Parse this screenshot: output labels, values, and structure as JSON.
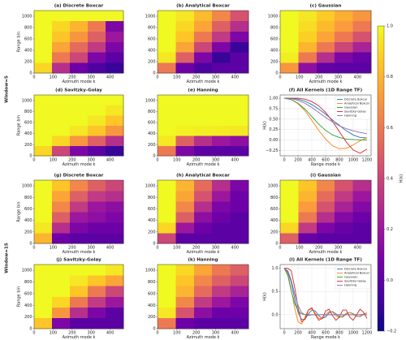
{
  "row_labels": [
    "Window=5",
    "Window=15"
  ],
  "colorbar": {
    "label": "H(k)",
    "lim": [
      -0.2,
      1.0
    ],
    "ticks": [
      {
        "value": -0.2,
        "label": "−0.2"
      },
      {
        "value": 0,
        "label": "0.0"
      },
      {
        "value": 0.2,
        "label": "0.2"
      },
      {
        "value": 0.4,
        "label": "0.4"
      },
      {
        "value": 0.6,
        "label": "0.6"
      },
      {
        "value": 0.8,
        "label": "0.8"
      },
      {
        "value": 1.0,
        "label": "1.0"
      }
    ],
    "colormap": [
      "#0d0887",
      "#46039f",
      "#7201a8",
      "#9c179e",
      "#bd3786",
      "#d8576b",
      "#ed7953",
      "#fb9f3a",
      "#fdca26",
      "#f0f921"
    ]
  },
  "chart_data": [
    {
      "type": "heatmap",
      "title": "(a) Discrete Boxcar",
      "xlabel": "Azimuth mode k",
      "ylabel": "Range bin",
      "xlim": [
        0,
        470
      ],
      "ylim": [
        0,
        1100
      ],
      "xticks": [
        0,
        100,
        200,
        300,
        400
      ],
      "yticks": [
        0,
        200,
        400,
        600,
        800,
        1000
      ],
      "z": [
        [
          0.9,
          0.3,
          0.05,
          -0.05,
          -0.1
        ],
        [
          1,
          0.6,
          0.4,
          0.1,
          0
        ],
        [
          1,
          0.75,
          0.55,
          0.35,
          0.1
        ],
        [
          1,
          0.85,
          0.7,
          0.5,
          0.2
        ],
        [
          1,
          0.9,
          0.8,
          0.6,
          0.1
        ],
        [
          1,
          1,
          1,
          1,
          1
        ]
      ]
    },
    {
      "type": "heatmap",
      "title": "(b) Analytical Boxcar",
      "xlabel": "Azimuth mode k",
      "xlim": [
        0,
        470
      ],
      "ylim": [
        0,
        1100
      ],
      "xticks": [
        0,
        100,
        200,
        300,
        400
      ],
      "yticks": [
        0,
        200,
        400,
        600,
        800,
        1000
      ],
      "z": [
        [
          0.6,
          0.05,
          -0.05,
          0,
          0
        ],
        [
          0.95,
          0.5,
          0.1,
          -0.1,
          0
        ],
        [
          1,
          0.75,
          0.4,
          0.1,
          -0.1
        ],
        [
          1,
          0.85,
          0.6,
          0.35,
          0.1
        ],
        [
          1,
          0.9,
          0.75,
          0.5,
          0.3
        ],
        [
          1,
          0.95,
          0.82,
          0.65,
          0.45
        ]
      ]
    },
    {
      "type": "heatmap",
      "title": "(c) Gaussian",
      "xlabel": "Azimuth mode k",
      "xlim": [
        0,
        470
      ],
      "ylim": [
        0,
        1100
      ],
      "xticks": [
        0,
        100,
        200,
        300,
        400
      ],
      "yticks": [
        0,
        200,
        400,
        600,
        800,
        1000
      ],
      "z": [
        [
          0.7,
          0.15,
          0.02,
          0,
          0
        ],
        [
          0.97,
          0.6,
          0.3,
          0.1,
          0.03
        ],
        [
          1,
          0.8,
          0.6,
          0.4,
          0.25
        ],
        [
          1,
          0.88,
          0.75,
          0.6,
          0.45
        ],
        [
          1,
          0.92,
          0.82,
          0.72,
          0.6
        ],
        [
          1,
          0.95,
          0.87,
          0.78,
          0.7
        ]
      ]
    },
    {
      "type": "heatmap",
      "title": "(d) Savitzky-Golay",
      "xlabel": "Azimuth mode k",
      "ylabel": "Range bin",
      "xlim": [
        0,
        470
      ],
      "ylim": [
        0,
        1100
      ],
      "xticks": [
        0,
        100,
        200,
        300,
        400
      ],
      "yticks": [
        0,
        200,
        400,
        600,
        800,
        1000
      ],
      "z": [
        [
          0.9,
          0.4,
          0.1,
          0,
          -0.1
        ],
        [
          1,
          0.9,
          0.7,
          0.5,
          0.3
        ],
        [
          1,
          1,
          0.95,
          0.85,
          0.7
        ],
        [
          1,
          1,
          1,
          0.95,
          0.85
        ],
        [
          1,
          1,
          1,
          1,
          0.95
        ],
        [
          1,
          1,
          1,
          1,
          1
        ]
      ]
    },
    {
      "type": "heatmap",
      "title": "(e) Hanning",
      "xlabel": "Azimuth mode k",
      "xlim": [
        0,
        470
      ],
      "ylim": [
        0,
        1100
      ],
      "xticks": [
        0,
        100,
        200,
        300,
        400
      ],
      "yticks": [
        0,
        200,
        400,
        600,
        800,
        1000
      ],
      "z": [
        [
          0.6,
          0.1,
          0,
          0,
          0
        ],
        [
          0.95,
          0.5,
          0.3,
          0.2,
          0.15
        ],
        [
          1,
          0.98,
          0.97,
          0.96,
          0.95
        ],
        [
          1,
          1,
          1,
          1,
          1
        ],
        [
          1,
          1,
          1,
          1,
          1
        ],
        [
          1,
          1,
          1,
          1,
          1
        ]
      ]
    },
    {
      "type": "line",
      "title": "(f) All Kernels (1D Range TF)",
      "xlabel": "Range mode k",
      "ylabel": "H(k)",
      "xlim": [
        -60,
        1260
      ],
      "ylim": [
        -0.38,
        1.08
      ],
      "xticks": [
        0,
        200,
        400,
        600,
        800,
        1000,
        1200
      ],
      "yticks": [
        {
          "value": -0.25,
          "label": "−0.25"
        },
        {
          "value": 0,
          "label": "0.00"
        },
        {
          "value": 0.25,
          "label": "0.25"
        },
        {
          "value": 0.5,
          "label": "0.50"
        },
        {
          "value": 0.75,
          "label": "0.75"
        },
        {
          "value": 1.0,
          "label": "1.00"
        }
      ],
      "grid": true,
      "x": [
        0,
        100,
        200,
        300,
        400,
        500,
        600,
        700,
        800,
        900,
        1000,
        1100,
        1200
      ],
      "series": [
        {
          "name": "Discrete Boxcar",
          "color": "#1f77b4",
          "values": [
            1,
            1,
            0.98,
            0.93,
            0.85,
            0.74,
            0.62,
            0.48,
            0.35,
            0.22,
            0.12,
            0.06,
            0.05
          ]
        },
        {
          "name": "Analytical Boxcar",
          "color": "#ff7f0e",
          "values": [
            1,
            0.97,
            0.87,
            0.7,
            0.47,
            0.23,
            0.02,
            -0.14,
            -0.21,
            -0.2,
            -0.12,
            -0.02,
            0.05
          ]
        },
        {
          "name": "Gaussian",
          "color": "#2ca02c",
          "values": [
            1,
            0.97,
            0.88,
            0.74,
            0.56,
            0.38,
            0.23,
            0.12,
            0.06,
            0.02,
            0.01,
            0,
            0
          ]
        },
        {
          "name": "Savitzky-Golay",
          "color": "#d62728",
          "values": [
            1,
            1,
            1,
            0.98,
            0.92,
            0.82,
            0.66,
            0.45,
            0.2,
            -0.05,
            -0.24,
            -0.32,
            -0.22
          ]
        },
        {
          "name": "Hanning",
          "color": "#9467bd",
          "values": [
            1,
            0.99,
            0.95,
            0.88,
            0.78,
            0.66,
            0.54,
            0.43,
            0.34,
            0.27,
            0.22,
            0.18,
            0.15
          ]
        }
      ]
    },
    {
      "type": "heatmap",
      "title": "(g) Discrete Boxcar",
      "xlabel": "Azimuth mode k",
      "ylabel": "Range bin",
      "xlim": [
        0,
        470
      ],
      "ylim": [
        0,
        1100
      ],
      "xticks": [
        0,
        100,
        200,
        300,
        400
      ],
      "yticks": [
        0,
        200,
        400,
        600,
        800,
        1000
      ],
      "z": [
        [
          0.8,
          0.05,
          0,
          0,
          0
        ],
        [
          0.95,
          0.3,
          0.1,
          0.05,
          0.05
        ],
        [
          1,
          0.5,
          0.2,
          0.15,
          0.1
        ],
        [
          1,
          0.65,
          0.35,
          0.2,
          0.15
        ],
        [
          1,
          0.75,
          0.5,
          0.35,
          0.3
        ],
        [
          1,
          0.85,
          0.65,
          0.5,
          0.4
        ]
      ]
    },
    {
      "type": "heatmap",
      "title": "(h) Analytical Boxcar",
      "xlabel": "Azimuth mode k",
      "xlim": [
        0,
        470
      ],
      "ylim": [
        0,
        1100
      ],
      "xticks": [
        0,
        100,
        200,
        300,
        400
      ],
      "yticks": [
        0,
        200,
        400,
        600,
        800,
        1000
      ],
      "z": [
        [
          0.4,
          0,
          0,
          0,
          0
        ],
        [
          0.9,
          0.2,
          0.05,
          0,
          0
        ],
        [
          1,
          0.5,
          0.15,
          0.05,
          0
        ],
        [
          1,
          0.65,
          0.3,
          0.1,
          0.05
        ],
        [
          1,
          0.75,
          0.45,
          0.2,
          0.05
        ],
        [
          1,
          0.8,
          0.55,
          0.3,
          0.1
        ]
      ]
    },
    {
      "type": "heatmap",
      "title": "(i) Gaussian",
      "xlabel": "Azimuth mode k",
      "xlim": [
        0,
        470
      ],
      "ylim": [
        0,
        1100
      ],
      "xticks": [
        0,
        100,
        200,
        300,
        400
      ],
      "yticks": [
        0,
        200,
        400,
        600,
        800,
        1000
      ],
      "z": [
        [
          0.5,
          0.03,
          0,
          0,
          0
        ],
        [
          0.9,
          0.35,
          0.1,
          0.03,
          0
        ],
        [
          1,
          0.6,
          0.3,
          0.12,
          0.05
        ],
        [
          1,
          0.72,
          0.45,
          0.25,
          0.12
        ],
        [
          1,
          0.8,
          0.55,
          0.35,
          0.2
        ],
        [
          1,
          0.85,
          0.65,
          0.45,
          0.3
        ]
      ]
    },
    {
      "type": "heatmap",
      "title": "(j) Savitzky-Golay",
      "xlabel": "Azimuth mode k",
      "ylabel": "Range bin",
      "xlim": [
        0,
        470
      ],
      "ylim": [
        0,
        1100
      ],
      "xticks": [
        0,
        100,
        200,
        300,
        400
      ],
      "yticks": [
        0,
        200,
        400,
        600,
        800,
        1000
      ],
      "z": [
        [
          0.85,
          0.1,
          0,
          0,
          0
        ],
        [
          1,
          0.7,
          0.3,
          0.1,
          0
        ],
        [
          1,
          0.9,
          0.6,
          0.35,
          0.2
        ],
        [
          1,
          1,
          0.85,
          0.6,
          0.4
        ],
        [
          1,
          1,
          0.95,
          0.85,
          0.75
        ],
        [
          1,
          1,
          1,
          1,
          0.95
        ]
      ]
    },
    {
      "type": "heatmap",
      "title": "(k) Hanning",
      "xlabel": "Azimuth mode k",
      "xlim": [
        0,
        470
      ],
      "ylim": [
        0,
        1100
      ],
      "xticks": [
        0,
        100,
        200,
        300,
        400
      ],
      "yticks": [
        0,
        200,
        400,
        600,
        800,
        1000
      ],
      "z": [
        [
          0.6,
          0.05,
          0,
          0,
          0
        ],
        [
          0.95,
          0.45,
          0.15,
          0.05,
          0.05
        ],
        [
          1,
          0.65,
          0.35,
          0.2,
          0.1
        ],
        [
          1,
          0.8,
          0.55,
          0.35,
          0.25
        ],
        [
          1,
          0.85,
          0.65,
          0.5,
          0.4
        ],
        [
          1,
          0.9,
          0.75,
          0.6,
          0.5
        ]
      ]
    },
    {
      "type": "line",
      "title": "(l) All Kernels (1D Range TF)",
      "xlabel": "Range mode k",
      "ylabel": "H(k)",
      "xlim": [
        -60,
        1260
      ],
      "ylim": [
        -0.3,
        1.08
      ],
      "xticks": [
        0,
        200,
        400,
        600,
        800,
        1000,
        1200
      ],
      "yticks": [
        {
          "value": 0,
          "label": "0.0"
        },
        {
          "value": 0.5,
          "label": "0.5"
        },
        {
          "value": 1.0,
          "label": "1.0"
        }
      ],
      "grid": true,
      "x": [
        0,
        50,
        100,
        150,
        200,
        250,
        300,
        350,
        400,
        450,
        500,
        550,
        600,
        650,
        700,
        750,
        800,
        850,
        900,
        950,
        1000,
        1050,
        1100,
        1150,
        1200
      ],
      "series": [
        {
          "name": "Discrete Boxcar",
          "color": "#1f77b4",
          "values": [
            1,
            0.92,
            0.7,
            0.35,
            0.05,
            -0.1,
            -0.1,
            0.02,
            0.1,
            0.08,
            -0.02,
            -0.08,
            -0.05,
            0.04,
            0.07,
            0.02,
            -0.05,
            -0.05,
            0.02,
            0.05,
            0.02,
            -0.03,
            -0.04,
            0.01,
            0.04
          ]
        },
        {
          "name": "Analytical Boxcar",
          "color": "#ff7f0e",
          "values": [
            1,
            0.88,
            0.55,
            0.15,
            -0.15,
            -0.2,
            -0.05,
            0.1,
            0.13,
            0.03,
            -0.08,
            -0.09,
            0,
            0.07,
            0.06,
            -0.02,
            -0.06,
            -0.03,
            0.03,
            0.05,
            0.01,
            -0.04,
            -0.03,
            0.02,
            0.04
          ]
        },
        {
          "name": "Gaussian",
          "color": "#2ca02c",
          "values": [
            1,
            0.85,
            0.52,
            0.25,
            0.08,
            0.02,
            0,
            0,
            0,
            0,
            0,
            0,
            0,
            0,
            0,
            0,
            0,
            0,
            0,
            0,
            0,
            0,
            0,
            0,
            0
          ]
        },
        {
          "name": "Savitzky-Golay",
          "color": "#d62728",
          "values": [
            1,
            1,
            0.95,
            0.6,
            0.15,
            -0.15,
            -0.1,
            0.1,
            0.15,
            0,
            -0.12,
            -0.08,
            0.08,
            0.12,
            -0.02,
            -0.12,
            -0.05,
            0.1,
            0.1,
            -0.05,
            -0.12,
            0,
            0.12,
            0.05,
            -0.08
          ]
        },
        {
          "name": "Hanning",
          "color": "#9467bd",
          "values": [
            1,
            0.95,
            0.75,
            0.45,
            0.2,
            0.05,
            0,
            -0.02,
            0,
            0,
            0,
            0,
            0,
            0,
            0,
            0,
            0,
            0,
            0,
            0,
            0,
            0,
            0,
            0,
            0
          ]
        }
      ]
    }
  ]
}
